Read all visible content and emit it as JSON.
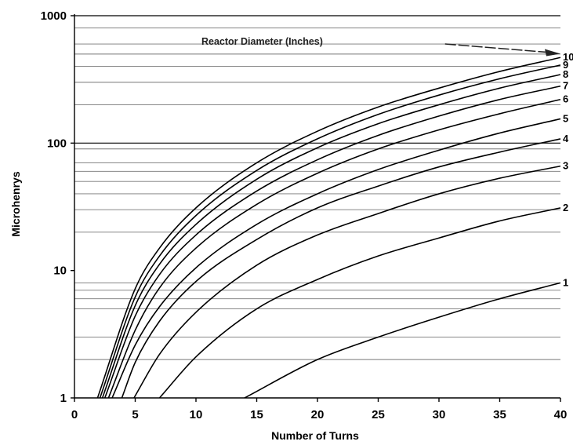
{
  "chart_data": {
    "type": "line",
    "xlabel": "Number of Turns",
    "ylabel": "Microhenrys",
    "y_scale": "log",
    "xlim": [
      0,
      40
    ],
    "ylim": [
      1,
      1000
    ],
    "x_ticks": [
      0,
      5,
      10,
      15,
      20,
      25,
      30,
      35,
      40
    ],
    "y_ticks": [
      1,
      10,
      100,
      1000
    ],
    "y_tick_labels": [
      "1",
      "10",
      "100",
      "1000"
    ],
    "grid": "horizontal",
    "grid_lines_at": [
      2,
      3,
      5,
      6,
      7,
      8,
      20,
      30,
      40,
      50,
      60,
      70,
      90,
      100,
      200,
      300,
      400,
      500,
      600,
      800
    ],
    "annotation": {
      "text": "Reactor Diameter (Inches)",
      "arrow_from": [
        30.5,
        600
      ],
      "arrow_to": [
        40,
        510
      ]
    },
    "series": [
      {
        "label": "1",
        "x": [
          14,
          20,
          25,
          30,
          35,
          40
        ],
        "y": [
          1,
          2,
          3,
          4.3,
          6,
          8
        ]
      },
      {
        "label": "2",
        "x": [
          7,
          10,
          15,
          20,
          25,
          30,
          35,
          40
        ],
        "y": [
          1,
          2.1,
          5,
          8.5,
          13,
          18,
          24.5,
          31
        ]
      },
      {
        "label": "3",
        "x": [
          4.9,
          7,
          10,
          15,
          20,
          25,
          30,
          35,
          40
        ],
        "y": [
          1,
          2.2,
          4.7,
          11,
          19,
          28,
          40,
          53,
          66
        ]
      },
      {
        "label": "4",
        "x": [
          3.9,
          5,
          7,
          10,
          15,
          20,
          25,
          30,
          35,
          40
        ],
        "y": [
          1,
          1.9,
          4,
          8.2,
          17.5,
          31,
          46,
          65,
          85,
          108
        ]
      },
      {
        "label": "5",
        "x": [
          3.1,
          5,
          7,
          10,
          15,
          20,
          25,
          30,
          35,
          40
        ],
        "y": [
          1,
          2.6,
          5.2,
          10.5,
          23,
          40,
          62,
          88,
          120,
          155
        ]
      },
      {
        "label": "6",
        "x": [
          2.8,
          5,
          7,
          10,
          15,
          20,
          25,
          30,
          35,
          40
        ],
        "y": [
          1,
          3.4,
          7.3,
          15,
          33,
          58,
          90,
          127,
          170,
          220
        ]
      },
      {
        "label": "7",
        "x": [
          2.5,
          5,
          7,
          10,
          15,
          20,
          25,
          30,
          35,
          40
        ],
        "y": [
          1,
          4.4,
          9.3,
          19,
          42,
          74,
          115,
          163,
          220,
          280
        ]
      },
      {
        "label": "8",
        "x": [
          2.3,
          5,
          7,
          10,
          15,
          20,
          25,
          30,
          35,
          40
        ],
        "y": [
          1,
          5.3,
          11.2,
          23,
          52,
          92,
          142,
          200,
          270,
          345
        ]
      },
      {
        "label": "9",
        "x": [
          2.1,
          5,
          7,
          10,
          15,
          20,
          25,
          30,
          35,
          40
        ],
        "y": [
          1,
          6.2,
          13,
          27,
          61,
          108,
          168,
          238,
          320,
          410
        ]
      },
      {
        "label": "10",
        "x": [
          1.9,
          5,
          7,
          10,
          15,
          20,
          25,
          30,
          35,
          40
        ],
        "y": [
          1,
          7.2,
          15,
          31,
          70,
          124,
          192,
          270,
          365,
          470
        ]
      }
    ]
  }
}
